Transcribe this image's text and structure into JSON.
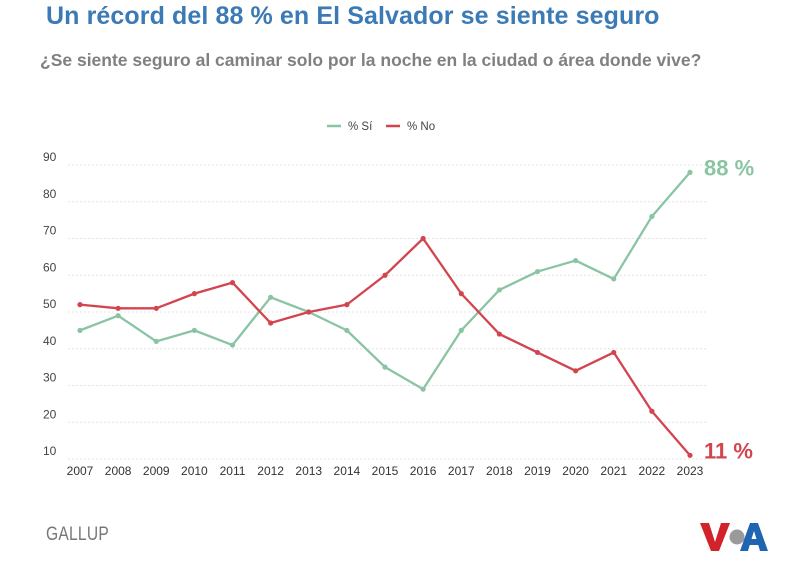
{
  "header": {
    "title": "Un récord del 88 % en El Salvador se siente seguro",
    "subtitle": "¿Se siente seguro al caminar solo por la noche en la ciudad o área donde vive?"
  },
  "footer": {
    "source": "GALLUP",
    "logo_letters": "VOA"
  },
  "chart_data": {
    "type": "line",
    "x": [
      "2007",
      "2008",
      "2009",
      "2010",
      "2011",
      "2012",
      "2013",
      "2014",
      "2015",
      "2016",
      "2017",
      "2018",
      "2019",
      "2020",
      "2021",
      "2022",
      "2023"
    ],
    "series": [
      {
        "name": "% Sí",
        "color": "#8ac4a3",
        "values": [
          45,
          49,
          42,
          45,
          41,
          54,
          50,
          45,
          35,
          29,
          45,
          56,
          61,
          64,
          59,
          76,
          88
        ],
        "end_label": "88 %"
      },
      {
        "name": "% No",
        "color": "#d2454e",
        "values": [
          52,
          51,
          51,
          55,
          58,
          47,
          50,
          52,
          60,
          70,
          55,
          44,
          39,
          34,
          39,
          23,
          11
        ],
        "end_label": "11 %"
      }
    ],
    "yticks": [
      10,
      20,
      30,
      40,
      50,
      60,
      70,
      80,
      90
    ],
    "ylim": [
      9,
      92
    ],
    "grid": true,
    "legend_position": "top-center"
  }
}
